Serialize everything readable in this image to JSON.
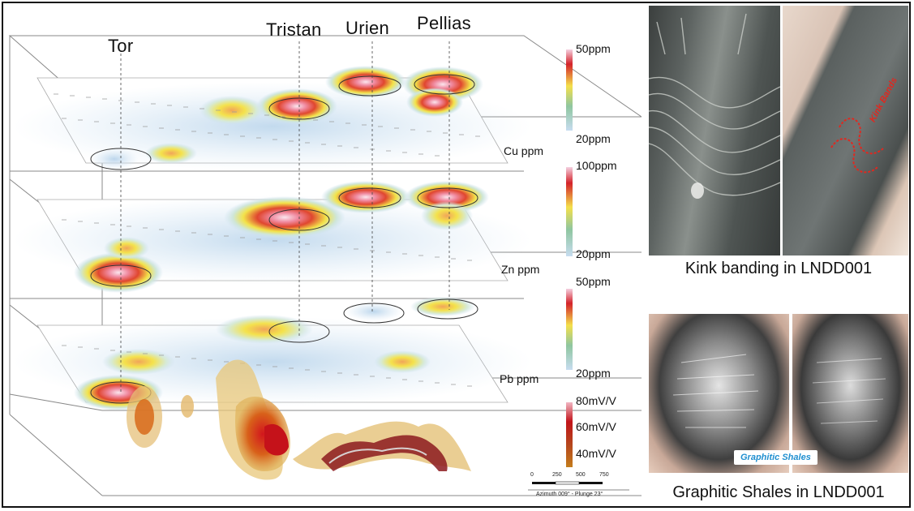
{
  "prospects": [
    "Tor",
    "Tristan",
    "Urien",
    "Pellias"
  ],
  "layers": [
    {
      "label": "Cu ppm",
      "legend_max": "50ppm",
      "legend_min": "20ppm"
    },
    {
      "label": "Zn ppm",
      "legend_max": "100ppm",
      "legend_min": "20ppm"
    },
    {
      "label": "Pb ppm",
      "legend_max": "50ppm",
      "legend_min": "20ppm"
    }
  ],
  "ip_legend": [
    "80mV/V",
    "60mV/V",
    "40mV/V"
  ],
  "scale_bar": {
    "ticks": [
      "0",
      "250",
      "500",
      "750"
    ],
    "orientation": "Azimuth 009° - Plunge 23°"
  },
  "photos": {
    "kink_caption": "Kink banding in LNDD001",
    "kink_annotation": "Kink Bands",
    "graphitic_caption": "Graphitic Shales in LNDD001",
    "graphitic_badge": "Graphitic Shales"
  },
  "colors": {
    "low": "#c9dff0",
    "mid": "#f3e64a",
    "high": "#d9382b",
    "peak": "#f7d6e0",
    "ip_high": "#b01818",
    "ip_low": "#c77a1a"
  }
}
